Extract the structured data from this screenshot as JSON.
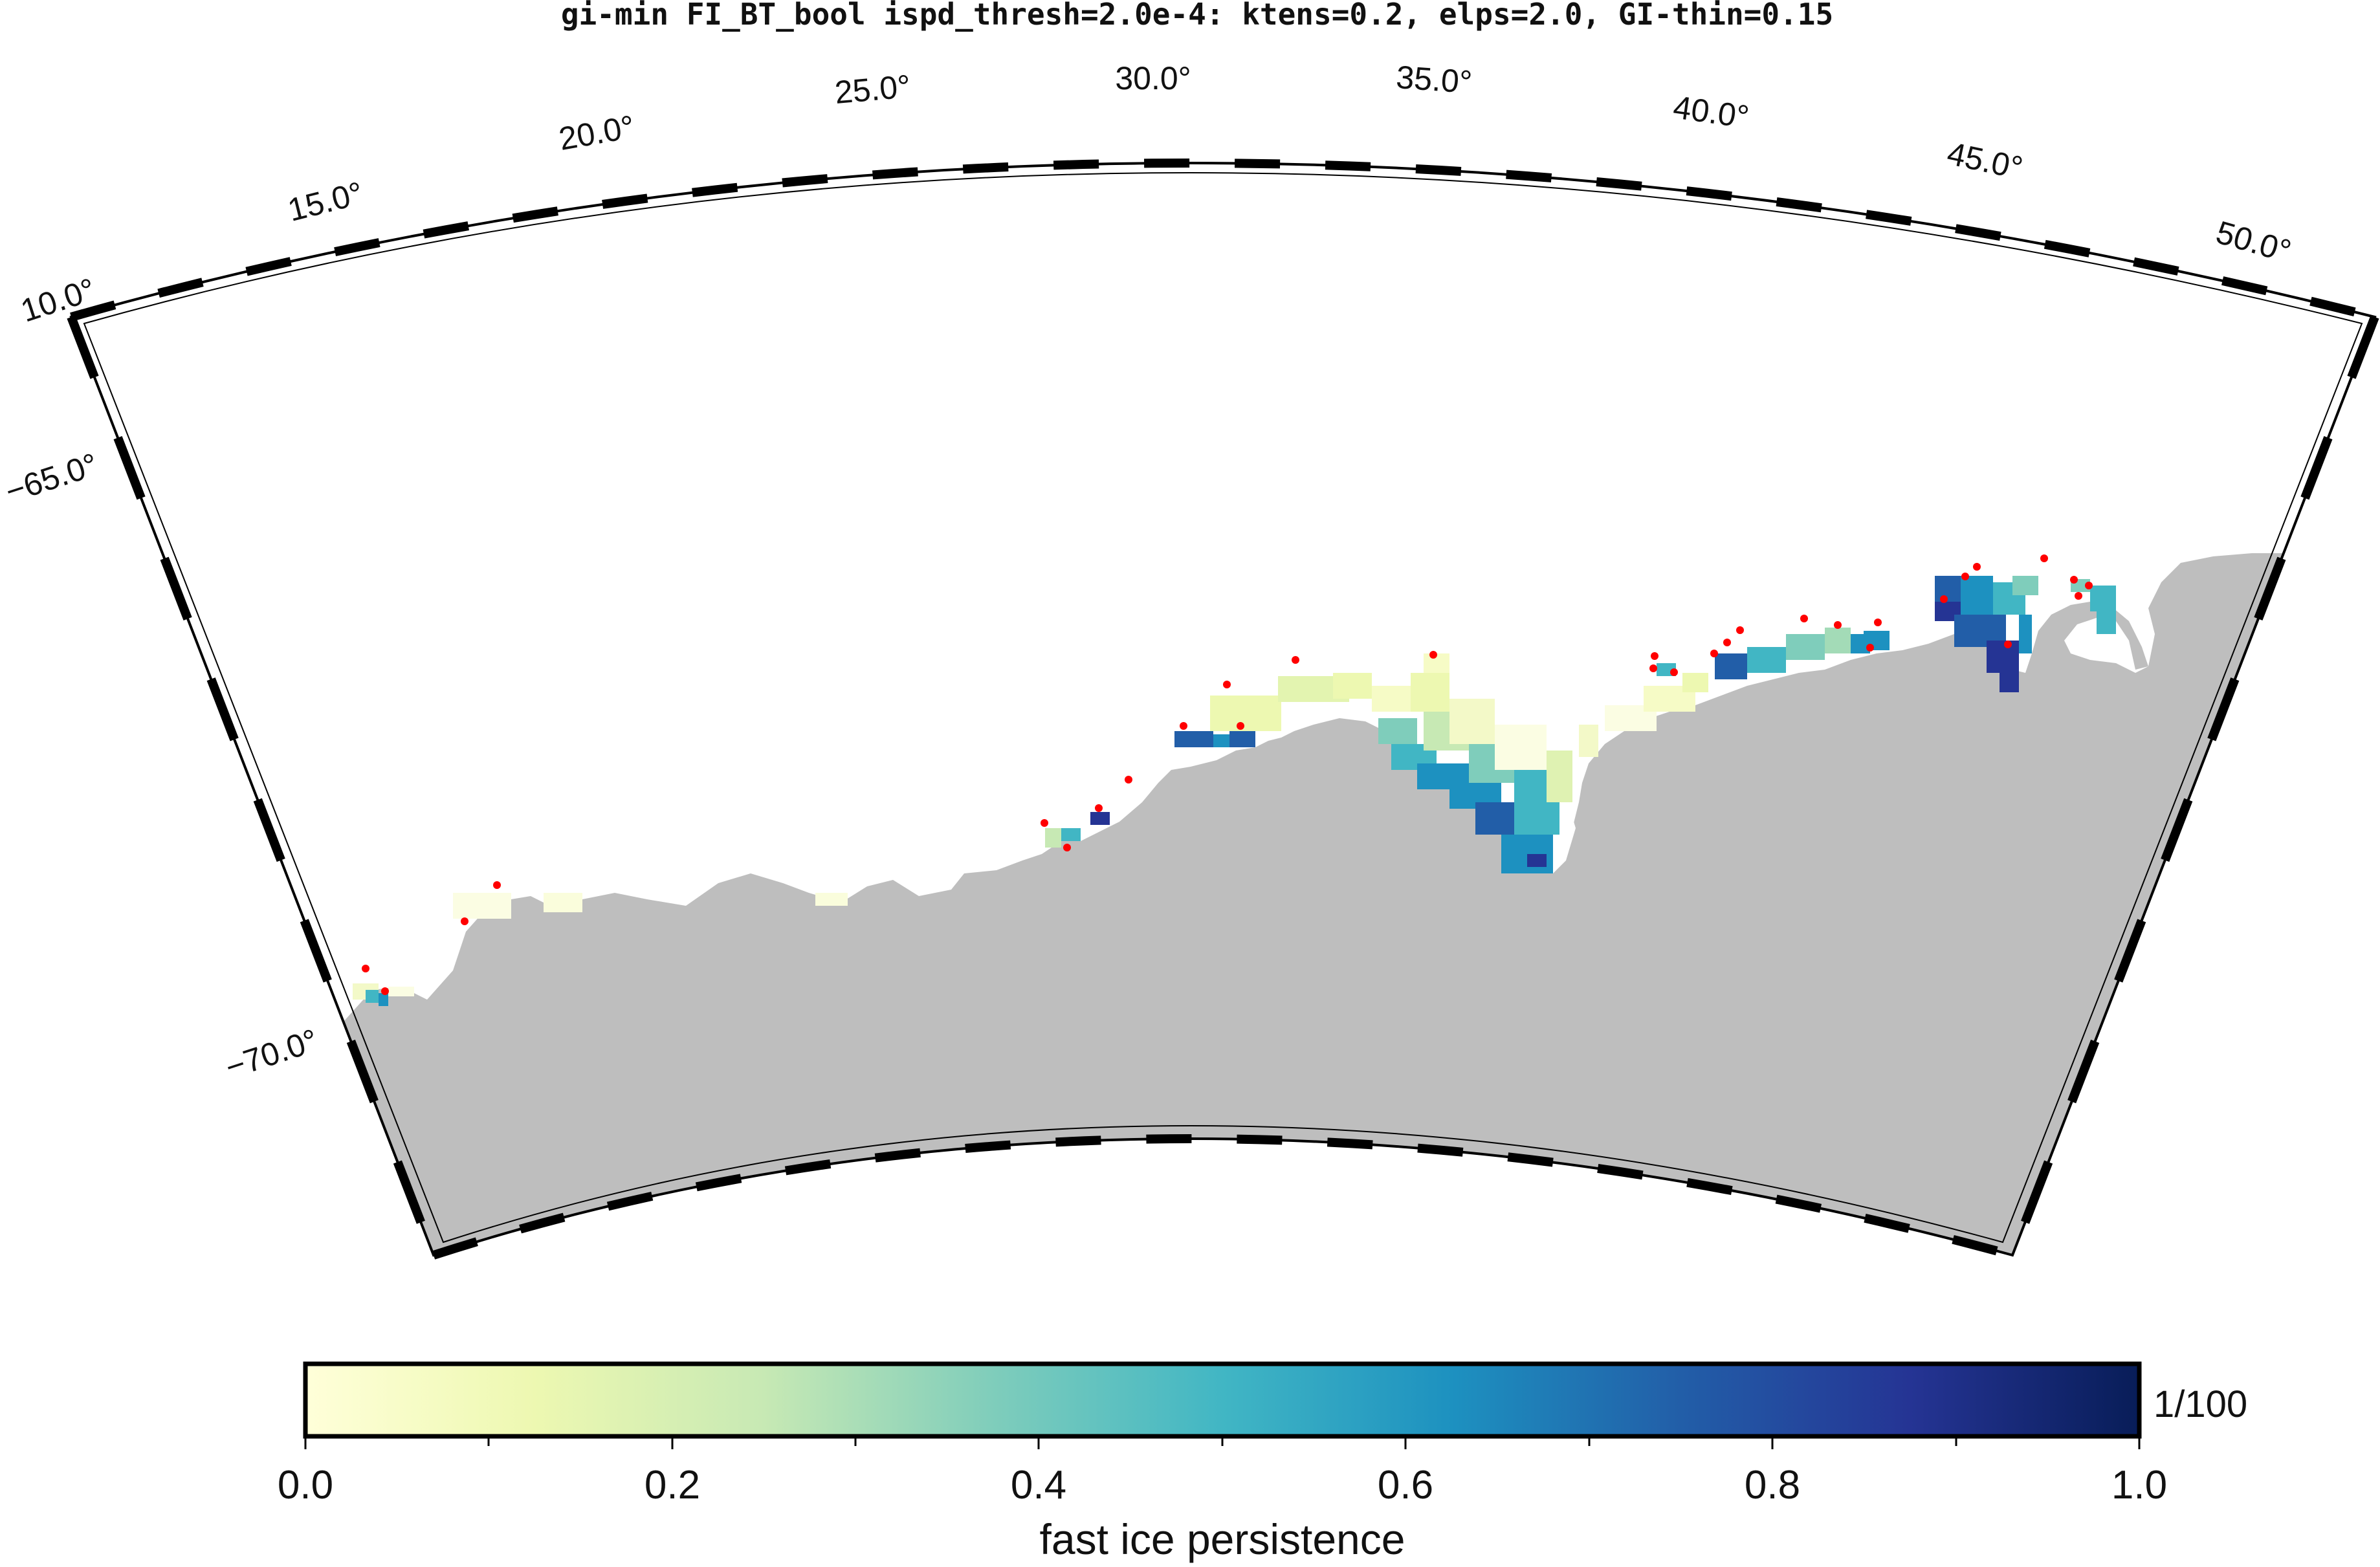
{
  "title": "gi-min FI_BT_bool ispd_thresh=2.0e-4: ktens=0.2, elps=2.0, GI-thin=0.15",
  "map": {
    "projection": "polar stereographic (south)",
    "longitude_range": [
      10.0,
      52.0
    ],
    "latitude_range": [
      -72.5,
      -62.0
    ],
    "land_color": "#bebebe",
    "ocean_color": "#ffffff",
    "marker_color": "#ff0000",
    "longitude_labels": [
      "10.0°",
      "15.0°",
      "20.0°",
      "25.0°",
      "30.0°",
      "35.0°",
      "40.0°",
      "45.0°",
      "50.0°"
    ],
    "latitude_labels": [
      "−65.0°",
      "−70.0°"
    ]
  },
  "colorbar": {
    "tick_labels": [
      "0.0",
      "0.2",
      "0.4",
      "0.6",
      "0.8",
      "1.0"
    ],
    "unit": "1/100",
    "label": "fast ice persistence",
    "colormap": [
      "#ffffd9",
      "#edf8b1",
      "#c7e9b4",
      "#7fcdbb",
      "#41b6c4",
      "#1d91c0",
      "#225ea8",
      "#253494",
      "#081d58"
    ]
  }
}
